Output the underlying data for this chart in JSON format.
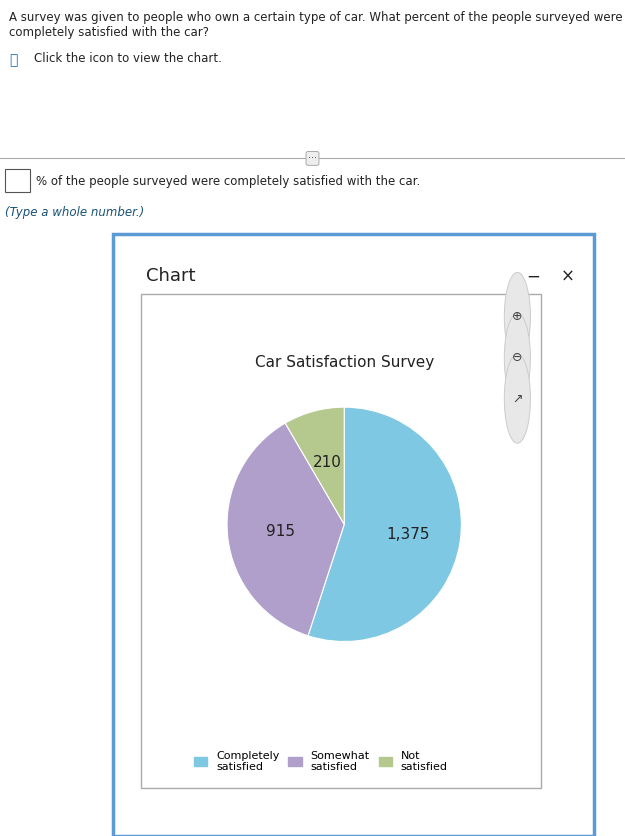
{
  "title": "Car Satisfaction Survey",
  "slices": [
    1375,
    915,
    210
  ],
  "labels": [
    "Completely\nsatisfied",
    "Somewhat\nsatisfied",
    "Not\nsatisfied"
  ],
  "slice_labels": [
    "1,375",
    "915",
    "210"
  ],
  "colors": [
    "#7ec8e3",
    "#b09fca",
    "#b5c98e"
  ],
  "question_text": "A survey was given to people who own a certain type of car. What percent of the people surveyed were completely satisfied with the car?",
  "click_text": "Click the icon to view the chart.",
  "answer_text": "% of the people surveyed were completely satisfied with the car.",
  "type_text": "(Type a whole number.)",
  "chart_title_text": "Chart",
  "bg_color": "#ffffff",
  "panel_bg": "#ffffff",
  "panel_border": "#5b9bd5",
  "fig_width": 6.25,
  "fig_height": 8.36
}
